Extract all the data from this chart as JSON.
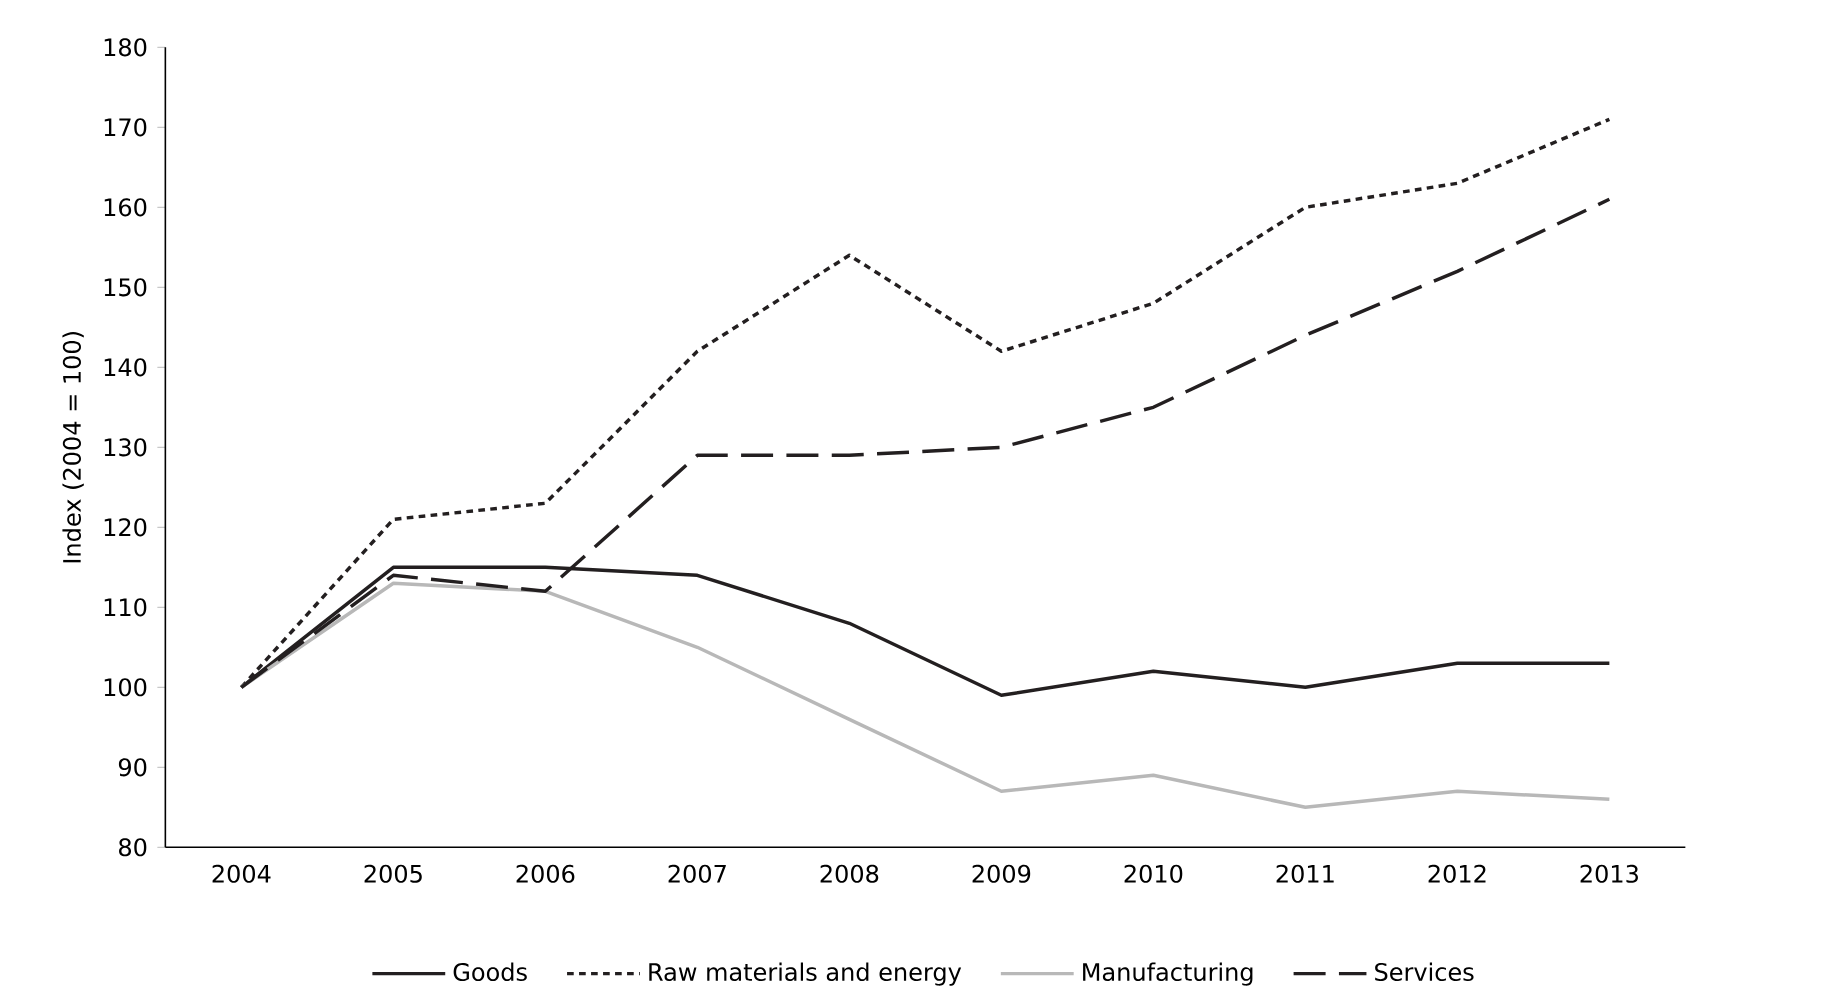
{
  "chart_data": {
    "type": "line",
    "ylabel": "Index (2004 = 100)",
    "categories": [
      "2004",
      "2005",
      "2006",
      "2007",
      "2008",
      "2009",
      "2010",
      "2011",
      "2012",
      "2013"
    ],
    "series": [
      {
        "name": "Goods",
        "color": "#231f20",
        "line_style": "solid",
        "values": [
          100,
          115,
          115,
          114,
          108,
          99,
          102,
          100,
          103,
          103
        ]
      },
      {
        "name": "Raw materials and energy",
        "color": "#231f20",
        "line_style": "dotted",
        "values": [
          100,
          121,
          123,
          142,
          154,
          142,
          148,
          160,
          163,
          171
        ]
      },
      {
        "name": "Manufacturing",
        "color": "#b8b8b8",
        "line_style": "solid",
        "values": [
          100,
          113,
          112,
          105,
          96,
          87,
          89,
          85,
          87,
          86
        ]
      },
      {
        "name": "Services",
        "color": "#231f20",
        "line_style": "dashed",
        "values": [
          100,
          114,
          112,
          129,
          129,
          130,
          135,
          144,
          152,
          161
        ]
      }
    ],
    "ylim": [
      80,
      180
    ],
    "yticks": [
      80,
      90,
      100,
      110,
      120,
      130,
      140,
      150,
      160,
      170,
      180
    ],
    "grid": false,
    "legend": "bottom",
    "marker": "none"
  }
}
